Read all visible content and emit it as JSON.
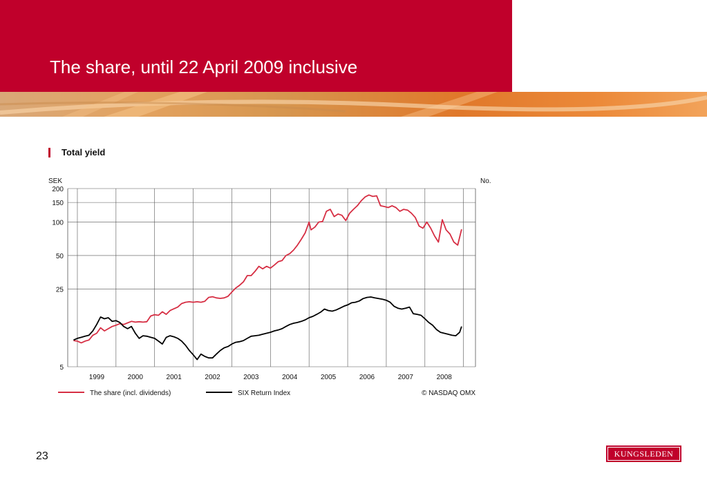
{
  "slide": {
    "title": "The share, until 22 April 2009 inclusive",
    "page_number": "23",
    "logo_text": "KUNGSLEDEN"
  },
  "colors": {
    "header_red": "#c0002b",
    "share_line": "#d62e43",
    "index_line": "#000000",
    "grid": "#555555"
  },
  "chart_data": {
    "type": "line",
    "title": "Total yield",
    "ylabel": "SEK",
    "ylabel_right": "No.",
    "y_scale": "log",
    "y_ticks": [
      5,
      25,
      50,
      100,
      150,
      200
    ],
    "ylim": [
      5,
      200
    ],
    "x_tick_labels": [
      "1999",
      "2000",
      "2001",
      "2002",
      "2003",
      "2004",
      "2005",
      "2006",
      "2007",
      "2008"
    ],
    "xlim": [
      1998.75,
      2009.31
    ],
    "grid": true,
    "legend_position": "bottom",
    "credit": "© NASDAQ OMX",
    "series": [
      {
        "name": "The share (incl. dividends)",
        "color": "#d62e43",
        "points": [
          [
            1998.9,
            8.6
          ],
          [
            1999.0,
            8.5
          ],
          [
            1999.1,
            8.2
          ],
          [
            1999.2,
            8.5
          ],
          [
            1999.3,
            8.7
          ],
          [
            1999.4,
            9.6
          ],
          [
            1999.5,
            10.0
          ],
          [
            1999.6,
            11.2
          ],
          [
            1999.7,
            10.5
          ],
          [
            1999.8,
            11.0
          ],
          [
            1999.9,
            11.5
          ],
          [
            2000.0,
            11.8
          ],
          [
            2000.1,
            12.2
          ],
          [
            2000.2,
            12.0
          ],
          [
            2000.3,
            12.4
          ],
          [
            2000.4,
            12.8
          ],
          [
            2000.5,
            12.6
          ],
          [
            2000.6,
            12.7
          ],
          [
            2000.7,
            12.6
          ],
          [
            2000.8,
            12.7
          ],
          [
            2000.9,
            14.3
          ],
          [
            2001.0,
            14.7
          ],
          [
            2001.1,
            14.5
          ],
          [
            2001.2,
            15.6
          ],
          [
            2001.3,
            14.8
          ],
          [
            2001.4,
            16.0
          ],
          [
            2001.5,
            16.6
          ],
          [
            2001.6,
            17.2
          ],
          [
            2001.7,
            18.5
          ],
          [
            2001.8,
            19.0
          ],
          [
            2001.9,
            19.2
          ],
          [
            2002.0,
            19.0
          ],
          [
            2002.1,
            19.2
          ],
          [
            2002.2,
            19.0
          ],
          [
            2002.3,
            19.4
          ],
          [
            2002.4,
            21.0
          ],
          [
            2002.5,
            21.3
          ],
          [
            2002.6,
            20.8
          ],
          [
            2002.7,
            20.6
          ],
          [
            2002.8,
            20.8
          ],
          [
            2002.9,
            21.5
          ],
          [
            2003.0,
            23.5
          ],
          [
            2003.1,
            25.5
          ],
          [
            2003.2,
            27.0
          ],
          [
            2003.3,
            29.0
          ],
          [
            2003.4,
            33.0
          ],
          [
            2003.5,
            33.0
          ],
          [
            2003.6,
            36.0
          ],
          [
            2003.7,
            40.0
          ],
          [
            2003.8,
            38.0
          ],
          [
            2003.9,
            40.0
          ],
          [
            2004.0,
            38.5
          ],
          [
            2004.1,
            41.0
          ],
          [
            2004.2,
            44.0
          ],
          [
            2004.3,
            45.0
          ],
          [
            2004.4,
            50.0
          ],
          [
            2004.5,
            52.0
          ],
          [
            2004.6,
            56.0
          ],
          [
            2004.7,
            62.0
          ],
          [
            2004.8,
            70.0
          ],
          [
            2004.9,
            80.0
          ],
          [
            2005.0,
            100.0
          ],
          [
            2005.05,
            85.0
          ],
          [
            2005.15,
            90.0
          ],
          [
            2005.25,
            100.0
          ],
          [
            2005.35,
            101.0
          ],
          [
            2005.45,
            125.0
          ],
          [
            2005.55,
            130.0
          ],
          [
            2005.65,
            112.0
          ],
          [
            2005.75,
            118.0
          ],
          [
            2005.85,
            115.0
          ],
          [
            2005.95,
            103.0
          ],
          [
            2006.05,
            120.0
          ],
          [
            2006.15,
            130.0
          ],
          [
            2006.25,
            140.0
          ],
          [
            2006.35,
            155.0
          ],
          [
            2006.45,
            168.0
          ],
          [
            2006.55,
            175.0
          ],
          [
            2006.65,
            170.0
          ],
          [
            2006.75,
            172.0
          ],
          [
            2006.85,
            140.0
          ],
          [
            2006.95,
            138.0
          ],
          [
            2007.05,
            135.0
          ],
          [
            2007.15,
            140.0
          ],
          [
            2007.25,
            135.0
          ],
          [
            2007.35,
            125.0
          ],
          [
            2007.45,
            130.0
          ],
          [
            2007.55,
            128.0
          ],
          [
            2007.65,
            120.0
          ],
          [
            2007.75,
            110.0
          ],
          [
            2007.85,
            92.0
          ],
          [
            2007.95,
            88.0
          ],
          [
            2008.05,
            100.0
          ],
          [
            2008.15,
            88.0
          ],
          [
            2008.25,
            75.0
          ],
          [
            2008.35,
            66.0
          ],
          [
            2008.45,
            105.0
          ],
          [
            2008.55,
            85.0
          ],
          [
            2008.65,
            78.0
          ],
          [
            2008.75,
            66.0
          ],
          [
            2008.85,
            62.0
          ],
          [
            2008.95,
            86.0
          ]
        ]
      },
      {
        "name": "SIX Return Index",
        "color": "#000000",
        "points": [
          [
            1998.9,
            8.7
          ],
          [
            1999.0,
            9.0
          ],
          [
            1999.1,
            9.2
          ],
          [
            1999.2,
            9.4
          ],
          [
            1999.3,
            9.6
          ],
          [
            1999.4,
            10.5
          ],
          [
            1999.5,
            12.0
          ],
          [
            1999.6,
            14.0
          ],
          [
            1999.7,
            13.5
          ],
          [
            1999.8,
            13.8
          ],
          [
            1999.9,
            12.8
          ],
          [
            2000.0,
            13.0
          ],
          [
            2000.1,
            12.5
          ],
          [
            2000.2,
            11.5
          ],
          [
            2000.3,
            11.0
          ],
          [
            2000.4,
            11.5
          ],
          [
            2000.5,
            10.0
          ],
          [
            2000.6,
            9.0
          ],
          [
            2000.7,
            9.5
          ],
          [
            2000.8,
            9.4
          ],
          [
            2000.9,
            9.2
          ],
          [
            2001.0,
            9.0
          ],
          [
            2001.1,
            8.5
          ],
          [
            2001.2,
            8.0
          ],
          [
            2001.3,
            9.2
          ],
          [
            2001.4,
            9.5
          ],
          [
            2001.5,
            9.3
          ],
          [
            2001.6,
            9.0
          ],
          [
            2001.7,
            8.5
          ],
          [
            2001.8,
            7.8
          ],
          [
            2001.9,
            7.0
          ],
          [
            2002.0,
            6.4
          ],
          [
            2002.1,
            5.8
          ],
          [
            2002.2,
            6.5
          ],
          [
            2002.3,
            6.2
          ],
          [
            2002.4,
            6.0
          ],
          [
            2002.5,
            6.0
          ],
          [
            2002.6,
            6.5
          ],
          [
            2002.7,
            7.0
          ],
          [
            2002.8,
            7.4
          ],
          [
            2002.9,
            7.6
          ],
          [
            2003.0,
            8.0
          ],
          [
            2003.1,
            8.3
          ],
          [
            2003.2,
            8.4
          ],
          [
            2003.3,
            8.6
          ],
          [
            2003.4,
            9.0
          ],
          [
            2003.5,
            9.4
          ],
          [
            2003.6,
            9.5
          ],
          [
            2003.7,
            9.6
          ],
          [
            2003.8,
            9.8
          ],
          [
            2003.9,
            10.0
          ],
          [
            2004.0,
            10.2
          ],
          [
            2004.1,
            10.5
          ],
          [
            2004.2,
            10.7
          ],
          [
            2004.3,
            11.0
          ],
          [
            2004.4,
            11.5
          ],
          [
            2004.5,
            12.0
          ],
          [
            2004.6,
            12.3
          ],
          [
            2004.7,
            12.5
          ],
          [
            2004.8,
            12.8
          ],
          [
            2004.9,
            13.2
          ],
          [
            2005.0,
            13.8
          ],
          [
            2005.1,
            14.2
          ],
          [
            2005.2,
            14.8
          ],
          [
            2005.3,
            15.5
          ],
          [
            2005.4,
            16.5
          ],
          [
            2005.5,
            16.0
          ],
          [
            2005.6,
            15.8
          ],
          [
            2005.7,
            16.2
          ],
          [
            2005.8,
            16.8
          ],
          [
            2005.9,
            17.5
          ],
          [
            2006.0,
            18.0
          ],
          [
            2006.1,
            18.8
          ],
          [
            2006.2,
            19.0
          ],
          [
            2006.3,
            19.5
          ],
          [
            2006.4,
            20.5
          ],
          [
            2006.5,
            21.0
          ],
          [
            2006.6,
            21.2
          ],
          [
            2006.7,
            20.8
          ],
          [
            2006.8,
            20.5
          ],
          [
            2006.9,
            20.2
          ],
          [
            2007.0,
            19.8
          ],
          [
            2007.1,
            19.0
          ],
          [
            2007.2,
            17.5
          ],
          [
            2007.3,
            16.8
          ],
          [
            2007.4,
            16.5
          ],
          [
            2007.5,
            16.8
          ],
          [
            2007.6,
            17.2
          ],
          [
            2007.7,
            15.0
          ],
          [
            2007.8,
            14.8
          ],
          [
            2007.9,
            14.5
          ],
          [
            2008.0,
            13.5
          ],
          [
            2008.1,
            12.5
          ],
          [
            2008.2,
            11.8
          ],
          [
            2008.3,
            10.8
          ],
          [
            2008.4,
            10.2
          ],
          [
            2008.5,
            10.0
          ],
          [
            2008.6,
            9.8
          ],
          [
            2008.7,
            9.6
          ],
          [
            2008.8,
            9.5
          ],
          [
            2008.9,
            10.2
          ],
          [
            2008.95,
            11.5
          ]
        ]
      }
    ]
  }
}
